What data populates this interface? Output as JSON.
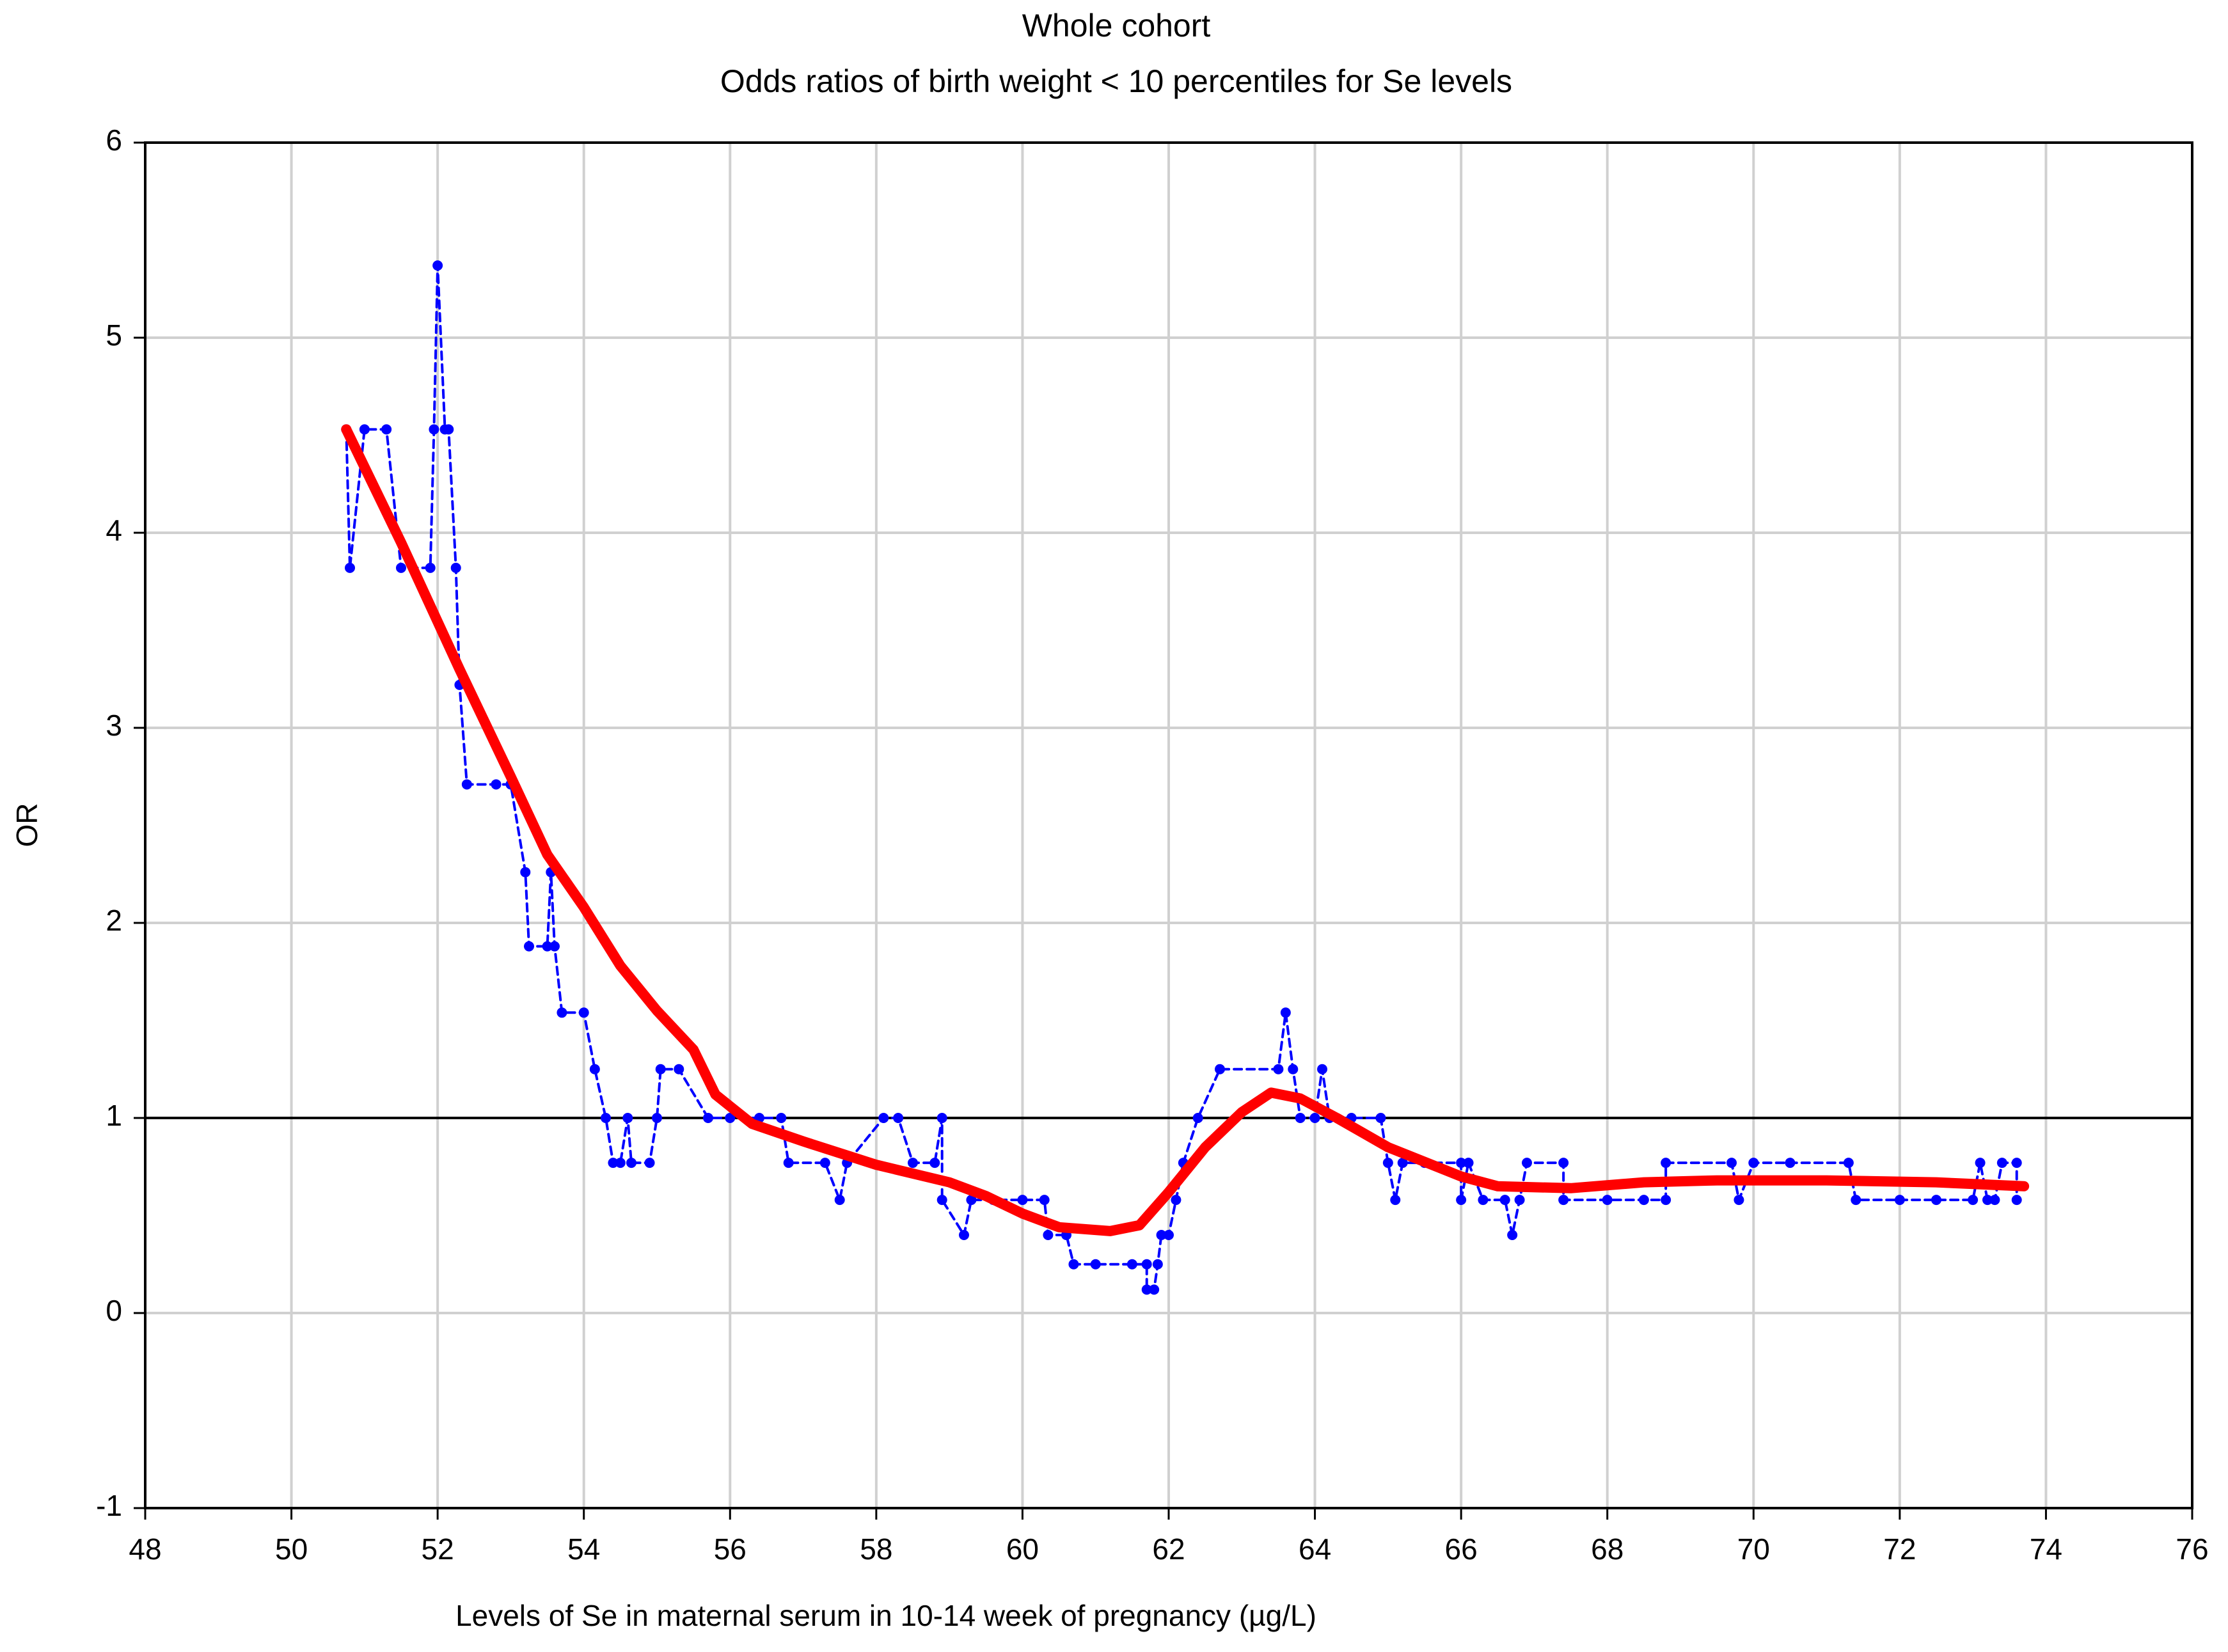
{
  "chart_data": {
    "type": "line",
    "title": "Whole cohort",
    "subtitle": "Odds ratios of birth weight < 10 percentiles for Se levels",
    "x_label": "Levels of Se in maternal serum in 10-14 week of pregnancy (µg/L)",
    "y_label": "OR",
    "xlim": [
      48,
      76
    ],
    "xticks": [
      48,
      50,
      52,
      54,
      56,
      58,
      60,
      62,
      64,
      66,
      68,
      70,
      72,
      74,
      76
    ],
    "ylim": [
      -1,
      6
    ],
    "yticks": [
      -1,
      0,
      1,
      2,
      3,
      4,
      5,
      6
    ],
    "grid": true,
    "reference_line": 1,
    "series": [
      {
        "color": "#0000ff",
        "line_style": "dashed",
        "markers": true,
        "x": [
          50.75,
          50.8,
          51.0,
          51.3,
          51.5,
          51.9,
          51.95,
          52.0,
          52.1,
          52.15,
          52.25,
          52.3,
          52.4,
          52.8,
          53.0,
          53.2,
          53.25,
          53.5,
          53.55,
          53.6,
          53.7,
          54.0,
          54.15,
          54.3,
          54.4,
          54.5,
          54.6,
          54.65,
          54.9,
          55.0,
          55.05,
          55.3,
          55.7,
          56.0,
          56.4,
          56.7,
          56.8,
          57.3,
          57.5,
          57.6,
          58.1,
          58.3,
          58.5,
          58.8,
          58.9,
          58.9,
          59.2,
          59.3,
          59.6,
          60.0,
          60.3,
          60.35,
          60.6,
          60.7,
          61.0,
          61.5,
          61.7,
          61.7,
          61.8,
          61.85,
          61.9,
          62.0,
          62.1,
          62.2,
          62.4,
          62.7,
          63.5,
          63.6,
          63.7,
          63.8,
          64.0,
          64.1,
          64.2,
          64.5,
          64.9,
          65.0,
          65.1,
          65.2,
          65.5,
          66.0,
          66.0,
          66.1,
          66.3,
          66.6,
          66.7,
          66.8,
          66.9,
          67.4,
          67.4,
          68.0,
          68.5,
          68.8,
          68.8,
          69.7,
          69.8,
          70.0,
          70.5,
          71.3,
          71.4,
          72.0,
          72.5,
          73.0,
          73.1,
          73.2,
          73.3,
          73.4,
          73.6,
          73.6
        ],
        "values": [
          4.53,
          3.82,
          4.53,
          4.53,
          3.82,
          3.82,
          4.53,
          5.37,
          4.53,
          4.53,
          3.82,
          3.22,
          2.71,
          2.71,
          2.71,
          2.26,
          1.88,
          1.88,
          2.26,
          1.88,
          1.54,
          1.54,
          1.25,
          1.0,
          0.77,
          0.77,
          1.0,
          0.77,
          0.77,
          1.0,
          1.25,
          1.25,
          1.0,
          1.0,
          1.0,
          1.0,
          0.77,
          0.77,
          0.58,
          0.77,
          1.0,
          1.0,
          0.77,
          0.77,
          1.0,
          0.58,
          0.4,
          0.58,
          0.58,
          0.58,
          0.58,
          0.4,
          0.4,
          0.25,
          0.25,
          0.25,
          0.25,
          0.12,
          0.12,
          0.25,
          0.4,
          0.4,
          0.58,
          0.77,
          1.0,
          1.25,
          1.25,
          1.54,
          1.25,
          1.0,
          1.0,
          1.25,
          1.0,
          1.0,
          1.0,
          0.77,
          0.58,
          0.77,
          0.77,
          0.77,
          0.58,
          0.77,
          0.58,
          0.58,
          0.4,
          0.58,
          0.77,
          0.77,
          0.58,
          0.58,
          0.58,
          0.58,
          0.77,
          0.77,
          0.58,
          0.77,
          0.77,
          0.77,
          0.58,
          0.58,
          0.58,
          0.58,
          0.77,
          0.58,
          0.58,
          0.77,
          0.77,
          0.58
        ]
      },
      {
        "color": "#ff0000",
        "line_style": "solid",
        "markers": false,
        "x": [
          50.75,
          51.5,
          52.3,
          53.0,
          53.5,
          54.0,
          54.5,
          55.0,
          55.5,
          55.8,
          56.3,
          57,
          58,
          59,
          59.5,
          60,
          60.5,
          61.2,
          61.6,
          62,
          62.5,
          63,
          63.4,
          63.8,
          64.3,
          65,
          66,
          66.5,
          67.5,
          68.5,
          69.5,
          71,
          72.5,
          73.7
        ],
        "values": [
          4.53,
          3.95,
          3.3,
          2.75,
          2.35,
          2.08,
          1.78,
          1.55,
          1.35,
          1.12,
          0.97,
          0.88,
          0.76,
          0.67,
          0.6,
          0.51,
          0.44,
          0.42,
          0.45,
          0.62,
          0.85,
          1.03,
          1.13,
          1.1,
          1.0,
          0.85,
          0.7,
          0.65,
          0.64,
          0.67,
          0.68,
          0.68,
          0.67,
          0.65
        ]
      }
    ]
  }
}
